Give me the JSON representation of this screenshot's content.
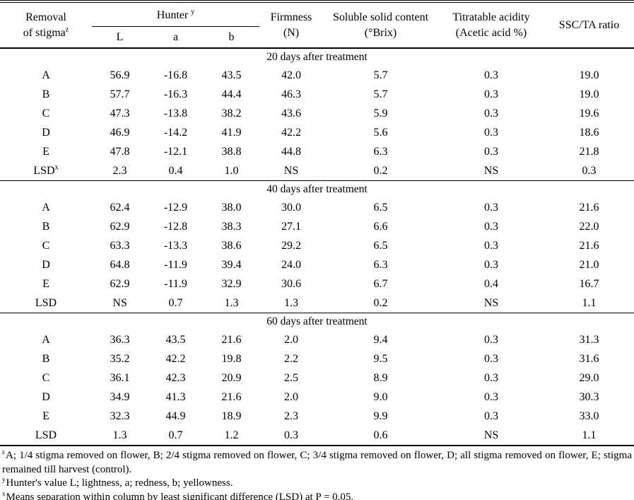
{
  "table": {
    "header": {
      "removal": {
        "line1": "Removal",
        "line2": "of stigma",
        "sup": "z"
      },
      "hunter": {
        "label": "Hunter",
        "sup": "y"
      },
      "hunter_sub": [
        "L",
        "a",
        "b"
      ],
      "firmness": {
        "line1": "Firmness",
        "line2": "(N)"
      },
      "ssc": {
        "line1": "Soluble solid content",
        "line2": "(°Brix)"
      },
      "ta": {
        "line1": "Titratable acidity",
        "line2": "(Acetic acid %)"
      },
      "ssc_ta": {
        "line1": "SSC/TA ratio"
      }
    },
    "sections": [
      {
        "title": "20 days after treatment",
        "rows": [
          {
            "label": "A",
            "sup": "",
            "values": [
              "56.9",
              "-16.8",
              "43.5",
              "42.0",
              "5.7",
              "0.3",
              "19.0"
            ]
          },
          {
            "label": "B",
            "sup": "",
            "values": [
              "57.7",
              "-16.3",
              "44.4",
              "46.3",
              "5.7",
              "0.3",
              "19.0"
            ]
          },
          {
            "label": "C",
            "sup": "",
            "values": [
              "47.3",
              "-13.8",
              "38.2",
              "43.6",
              "5.9",
              "0.3",
              "19.6"
            ]
          },
          {
            "label": "D",
            "sup": "",
            "values": [
              "46.9",
              "-14.2",
              "41.9",
              "42.2",
              "5.6",
              "0.3",
              "18.6"
            ]
          },
          {
            "label": "E",
            "sup": "",
            "values": [
              "47.8",
              "-12.1",
              "38.8",
              "44.8",
              "6.3",
              "0.3",
              "21.8"
            ]
          },
          {
            "label": "LSD",
            "sup": "x",
            "values": [
              "2.3",
              "0.4",
              "1.0",
              "NS",
              "0.2",
              "NS",
              "0.3"
            ]
          }
        ]
      },
      {
        "title": "40 days after treatment",
        "rows": [
          {
            "label": "A",
            "sup": "",
            "values": [
              "62.4",
              "-12.9",
              "38.0",
              "30.0",
              "6.5",
              "0.3",
              "21.6"
            ]
          },
          {
            "label": "B",
            "sup": "",
            "values": [
              "62.9",
              "-12.8",
              "38.3",
              "27.1",
              "6.6",
              "0.3",
              "22.0"
            ]
          },
          {
            "label": "C",
            "sup": "",
            "values": [
              "63.3",
              "-13.3",
              "38.6",
              "29.2",
              "6.5",
              "0.3",
              "21.6"
            ]
          },
          {
            "label": "D",
            "sup": "",
            "values": [
              "64.8",
              "-11.9",
              "39.4",
              "24.0",
              "6.3",
              "0.3",
              "21.0"
            ]
          },
          {
            "label": "E",
            "sup": "",
            "values": [
              "62.9",
              "-11.9",
              "32.9",
              "30.6",
              "6.7",
              "0.4",
              "16.7"
            ]
          },
          {
            "label": "LSD",
            "sup": "",
            "values": [
              "NS",
              "0.7",
              "1.3",
              "1.3",
              "0.2",
              "NS",
              "1.1"
            ]
          }
        ]
      },
      {
        "title": "60 days after treatment",
        "rows": [
          {
            "label": "A",
            "sup": "",
            "values": [
              "36.3",
              "43.5",
              "21.6",
              "2.0",
              "9.4",
              "0.3",
              "31.3"
            ]
          },
          {
            "label": "B",
            "sup": "",
            "values": [
              "35.2",
              "42.2",
              "19.8",
              "2.2",
              "9.5",
              "0.3",
              "31.6"
            ]
          },
          {
            "label": "C",
            "sup": "",
            "values": [
              "36.1",
              "42.3",
              "20.9",
              "2.5",
              "8.9",
              "0.3",
              "29.0"
            ]
          },
          {
            "label": "D",
            "sup": "",
            "values": [
              "34.9",
              "41.3",
              "21.6",
              "2.0",
              "9.0",
              "0.3",
              "30.3"
            ]
          },
          {
            "label": "E",
            "sup": "",
            "values": [
              "32.3",
              "44.9",
              "18.9",
              "2.3",
              "9.9",
              "0.3",
              "33.0"
            ]
          },
          {
            "label": "LSD",
            "sup": "",
            "values": [
              "1.3",
              "0.7",
              "1.2",
              "0.3",
              "0.6",
              "NS",
              "1.1"
            ]
          }
        ]
      }
    ],
    "footnotes": [
      {
        "sup": "z",
        "text": "A; 1/4 stigma removed on flower, B; 2/4 stigma removed on flower, C; 3/4 stigma removed on flower, D; all stigma removed on flower, E; stigma remained till harvest (control)."
      },
      {
        "sup": "y",
        "text": "Hunter's value L; lightness, a; redness, b; yellowness."
      },
      {
        "sup": "x",
        "text": "Means separation within column by least significant difference (LSD) at P = 0.05."
      }
    ]
  }
}
